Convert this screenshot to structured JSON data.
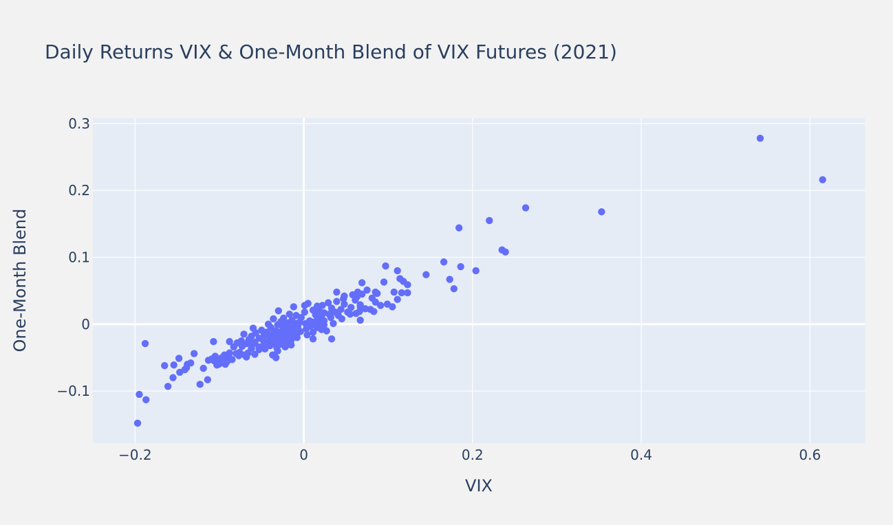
{
  "chart_data": {
    "type": "scatter",
    "title": "Daily Returns VIX & One-Month Blend of VIX Futures (2021)",
    "xlabel": "VIX",
    "ylabel": "One-Month Blend",
    "xlim": [
      -0.25,
      0.665
    ],
    "ylim": [
      -0.178,
      0.308
    ],
    "x_ticks": [
      -0.2,
      0,
      0.2,
      0.4,
      0.6
    ],
    "x_tick_labels": [
      "−0.2",
      "0",
      "0.2",
      "0.4",
      "0.6"
    ],
    "y_ticks": [
      -0.1,
      0,
      0.1,
      0.2,
      0.3
    ],
    "y_tick_labels": [
      "−0.1",
      "0",
      "0.1",
      "0.2",
      "0.3"
    ],
    "grid": true,
    "legend": "none",
    "colors": {
      "marker": "#636efa",
      "plot_bg": "#e5ecf6",
      "paper_bg": "#f2f2f2",
      "grid": "#ffffff",
      "text": "#2a3f5f"
    },
    "series": [
      {
        "points": [
          [
            0.541,
            0.278
          ],
          [
            0.615,
            0.216
          ],
          [
            0.263,
            0.174
          ],
          [
            0.353,
            0.168
          ],
          [
            0.22,
            0.155
          ],
          [
            0.184,
            0.144
          ],
          [
            0.235,
            0.111
          ],
          [
            0.239,
            0.108
          ],
          [
            0.166,
            0.093
          ],
          [
            0.097,
            0.087
          ],
          [
            0.186,
            0.086
          ],
          [
            0.111,
            0.08
          ],
          [
            0.204,
            0.08
          ],
          [
            0.145,
            0.074
          ],
          [
            0.114,
            0.068
          ],
          [
            0.173,
            0.067
          ],
          [
            0.118,
            0.064
          ],
          [
            0.095,
            0.063
          ],
          [
            0.069,
            0.062
          ],
          [
            0.123,
            0.059
          ],
          [
            0.178,
            0.053
          ],
          [
            0.075,
            0.051
          ],
          [
            0.107,
            0.048
          ],
          [
            0.085,
            0.048
          ],
          [
            0.039,
            0.048
          ],
          [
            0.064,
            0.048
          ],
          [
            0.123,
            0.047
          ],
          [
            0.116,
            0.047
          ],
          [
            0.087,
            0.046
          ],
          [
            0.069,
            0.045
          ],
          [
            0.058,
            0.044
          ],
          [
            0.048,
            0.042
          ],
          [
            0.063,
            0.041
          ],
          [
            0.081,
            0.039
          ],
          [
            0.047,
            0.038
          ],
          [
            0.111,
            0.037
          ],
          [
            0.061,
            0.036
          ],
          [
            0.039,
            0.034
          ],
          [
            0.085,
            0.033
          ],
          [
            0.029,
            0.032
          ],
          [
            0.005,
            0.031
          ],
          [
            0.048,
            0.03
          ],
          [
            0.099,
            0.03
          ],
          [
            0.067,
            0.029
          ],
          [
            0.001,
            0.028
          ],
          [
            0.022,
            0.028
          ],
          [
            0.016,
            0.027
          ],
          [
            0.105,
            0.026
          ],
          [
            0.091,
            0.028
          ],
          [
            0.067,
            0.026
          ],
          [
            -0.012,
            0.026
          ],
          [
            0.056,
            0.025
          ],
          [
            0.033,
            0.024
          ],
          [
            0.073,
            0.023
          ],
          [
            0.079,
            0.022
          ],
          [
            0.044,
            0.022
          ],
          [
            0.011,
            0.021
          ],
          [
            0.018,
            0.02
          ],
          [
            -0.03,
            0.02
          ],
          [
            0.066,
            0.019
          ],
          [
            0.052,
            0.018
          ],
          [
            0.083,
            0.019
          ],
          [
            0.037,
            0.018
          ],
          [
            0.001,
            0.018
          ],
          [
            0.024,
            0.017
          ],
          [
            0.062,
            0.016
          ],
          [
            0.03,
            0.015
          ],
          [
            -0.017,
            0.015
          ],
          [
            0.055,
            0.015
          ],
          [
            0.014,
            0.014
          ],
          [
            -0.009,
            0.013
          ],
          [
            0.041,
            0.013
          ],
          [
            0.021,
            0.011
          ],
          [
            -0.003,
            0.01
          ],
          [
            0.032,
            0.01
          ],
          [
            -0.024,
            0.009
          ],
          [
            -0.036,
            0.008
          ],
          [
            0.045,
            0.008
          ],
          [
            0.067,
            0.006
          ],
          [
            0.016,
            0.006
          ],
          [
            -0.014,
            0.006
          ],
          [
            0.007,
            0.005
          ],
          [
            0.024,
            0.005
          ],
          [
            -0.027,
            0.004
          ],
          [
            0.011,
            0.003
          ],
          [
            -0.005,
            0.003
          ],
          [
            0.019,
            0.002
          ],
          [
            -0.02,
            0.002
          ],
          [
            0.035,
            0.001
          ],
          [
            0.002,
            0.001
          ],
          [
            -0.01,
            0.001
          ],
          [
            0.013,
            0.0
          ],
          [
            -0.042,
            0.0
          ],
          [
            -0.031,
            -0.001
          ],
          [
            0.024,
            -0.001
          ],
          [
            -0.018,
            -0.002
          ],
          [
            -0.007,
            -0.003
          ],
          [
            0.008,
            -0.003
          ],
          [
            -0.025,
            -0.004
          ],
          [
            0.016,
            -0.005
          ],
          [
            -0.039,
            -0.005
          ],
          [
            -0.012,
            -0.006
          ],
          [
            -0.06,
            -0.006
          ],
          [
            0.003,
            -0.007
          ],
          [
            -0.022,
            -0.008
          ],
          [
            0.021,
            -0.008
          ],
          [
            -0.05,
            -0.009
          ],
          [
            -0.033,
            -0.01
          ],
          [
            -0.015,
            -0.01
          ],
          [
            0.027,
            -0.01
          ],
          [
            -0.004,
            -0.011
          ],
          [
            -0.028,
            -0.012
          ],
          [
            0.011,
            -0.012
          ],
          [
            -0.044,
            -0.012
          ],
          [
            -0.019,
            -0.013
          ],
          [
            -0.057,
            -0.013
          ],
          [
            -0.008,
            -0.014
          ],
          [
            -0.037,
            -0.015
          ],
          [
            -0.071,
            -0.015
          ],
          [
            -0.024,
            -0.016
          ],
          [
            0.004,
            -0.016
          ],
          [
            -0.013,
            -0.017
          ],
          [
            -0.047,
            -0.017
          ],
          [
            -0.03,
            -0.018
          ],
          [
            -0.062,
            -0.018
          ],
          [
            -0.02,
            -0.019
          ],
          [
            -0.008,
            -0.02
          ],
          [
            -0.04,
            -0.02
          ],
          [
            -0.053,
            -0.021
          ],
          [
            0.011,
            -0.022
          ],
          [
            -0.035,
            -0.022
          ],
          [
            -0.024,
            -0.023
          ],
          [
            0.033,
            -0.022
          ],
          [
            -0.065,
            -0.023
          ],
          [
            -0.048,
            -0.024
          ],
          [
            -0.015,
            -0.024
          ],
          [
            -0.03,
            -0.025
          ],
          [
            -0.074,
            -0.025
          ],
          [
            -0.041,
            -0.026
          ],
          [
            -0.058,
            -0.027
          ],
          [
            -0.088,
            -0.026
          ],
          [
            -0.107,
            -0.026
          ],
          [
            -0.022,
            -0.027
          ],
          [
            -0.034,
            -0.028
          ],
          [
            -0.079,
            -0.028
          ],
          [
            -0.068,
            -0.029
          ],
          [
            -0.047,
            -0.03
          ],
          [
            -0.028,
            -0.03
          ],
          [
            -0.015,
            -0.031
          ],
          [
            -0.061,
            -0.031
          ],
          [
            -0.04,
            -0.032
          ],
          [
            -0.073,
            -0.033
          ],
          [
            -0.053,
            -0.034
          ],
          [
            -0.022,
            -0.034
          ],
          [
            -0.083,
            -0.034
          ],
          [
            -0.032,
            -0.035
          ],
          [
            -0.062,
            -0.036
          ],
          [
            -0.046,
            -0.037
          ],
          [
            -0.053,
            -0.038
          ],
          [
            -0.031,
            -0.04
          ],
          [
            -0.076,
            -0.042
          ],
          [
            -0.066,
            -0.043
          ],
          [
            -0.088,
            -0.043
          ],
          [
            -0.08,
            -0.044
          ],
          [
            -0.13,
            -0.044
          ],
          [
            -0.058,
            -0.045
          ],
          [
            -0.07,
            -0.046
          ],
          [
            -0.037,
            -0.046
          ],
          [
            -0.094,
            -0.046
          ],
          [
            -0.077,
            -0.047
          ],
          [
            -0.105,
            -0.048
          ],
          [
            -0.089,
            -0.048
          ],
          [
            -0.068,
            -0.049
          ],
          [
            -0.033,
            -0.05
          ],
          [
            -0.097,
            -0.05
          ],
          [
            -0.148,
            -0.051
          ],
          [
            -0.102,
            -0.052
          ],
          [
            -0.109,
            -0.052
          ],
          [
            -0.085,
            -0.053
          ],
          [
            -0.094,
            -0.053
          ],
          [
            -0.113,
            -0.054
          ],
          [
            -0.106,
            -0.055
          ],
          [
            -0.091,
            -0.056
          ],
          [
            -0.134,
            -0.058
          ],
          [
            -0.098,
            -0.058
          ],
          [
            -0.101,
            -0.06
          ],
          [
            -0.138,
            -0.06
          ],
          [
            -0.093,
            -0.06
          ],
          [
            -0.154,
            -0.061
          ],
          [
            -0.103,
            -0.061
          ],
          [
            -0.165,
            -0.062
          ],
          [
            -0.139,
            -0.065
          ],
          [
            -0.119,
            -0.066
          ],
          [
            -0.141,
            -0.068
          ],
          [
            -0.147,
            -0.072
          ],
          [
            -0.155,
            -0.08
          ],
          [
            -0.114,
            -0.083
          ],
          [
            -0.123,
            -0.09
          ],
          [
            -0.161,
            -0.093
          ],
          [
            -0.188,
            -0.029
          ],
          [
            -0.195,
            -0.105
          ],
          [
            -0.187,
            -0.113
          ],
          [
            -0.197,
            -0.148
          ]
        ]
      }
    ]
  }
}
